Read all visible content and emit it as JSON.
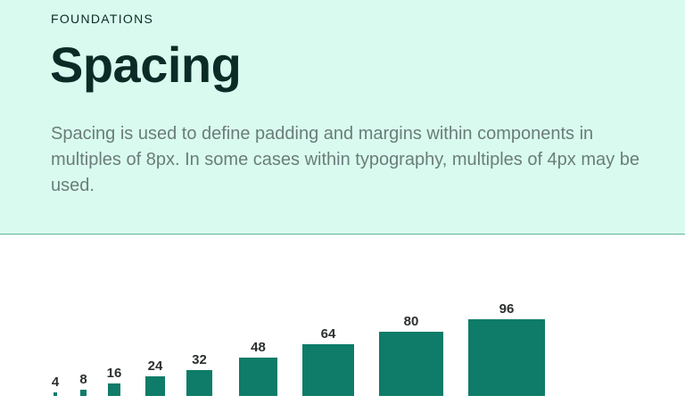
{
  "header": {
    "eyebrow": "FOUNDATIONS",
    "title": "Spacing",
    "description": "Spacing is used to define padding and margins within components in multiples of 8px. In some cases within typography, multiples of 4px may be used."
  },
  "spacing_scale": {
    "accent_color": "#0e7c68",
    "items": [
      {
        "label": "4",
        "value": 4
      },
      {
        "label": "8",
        "value": 8
      },
      {
        "label": "16",
        "value": 16
      },
      {
        "label": "24",
        "value": 24
      },
      {
        "label": "32",
        "value": 32
      },
      {
        "label": "48",
        "value": 48
      },
      {
        "label": "64",
        "value": 64
      },
      {
        "label": "80",
        "value": 80
      },
      {
        "label": "96",
        "value": 96
      }
    ]
  }
}
